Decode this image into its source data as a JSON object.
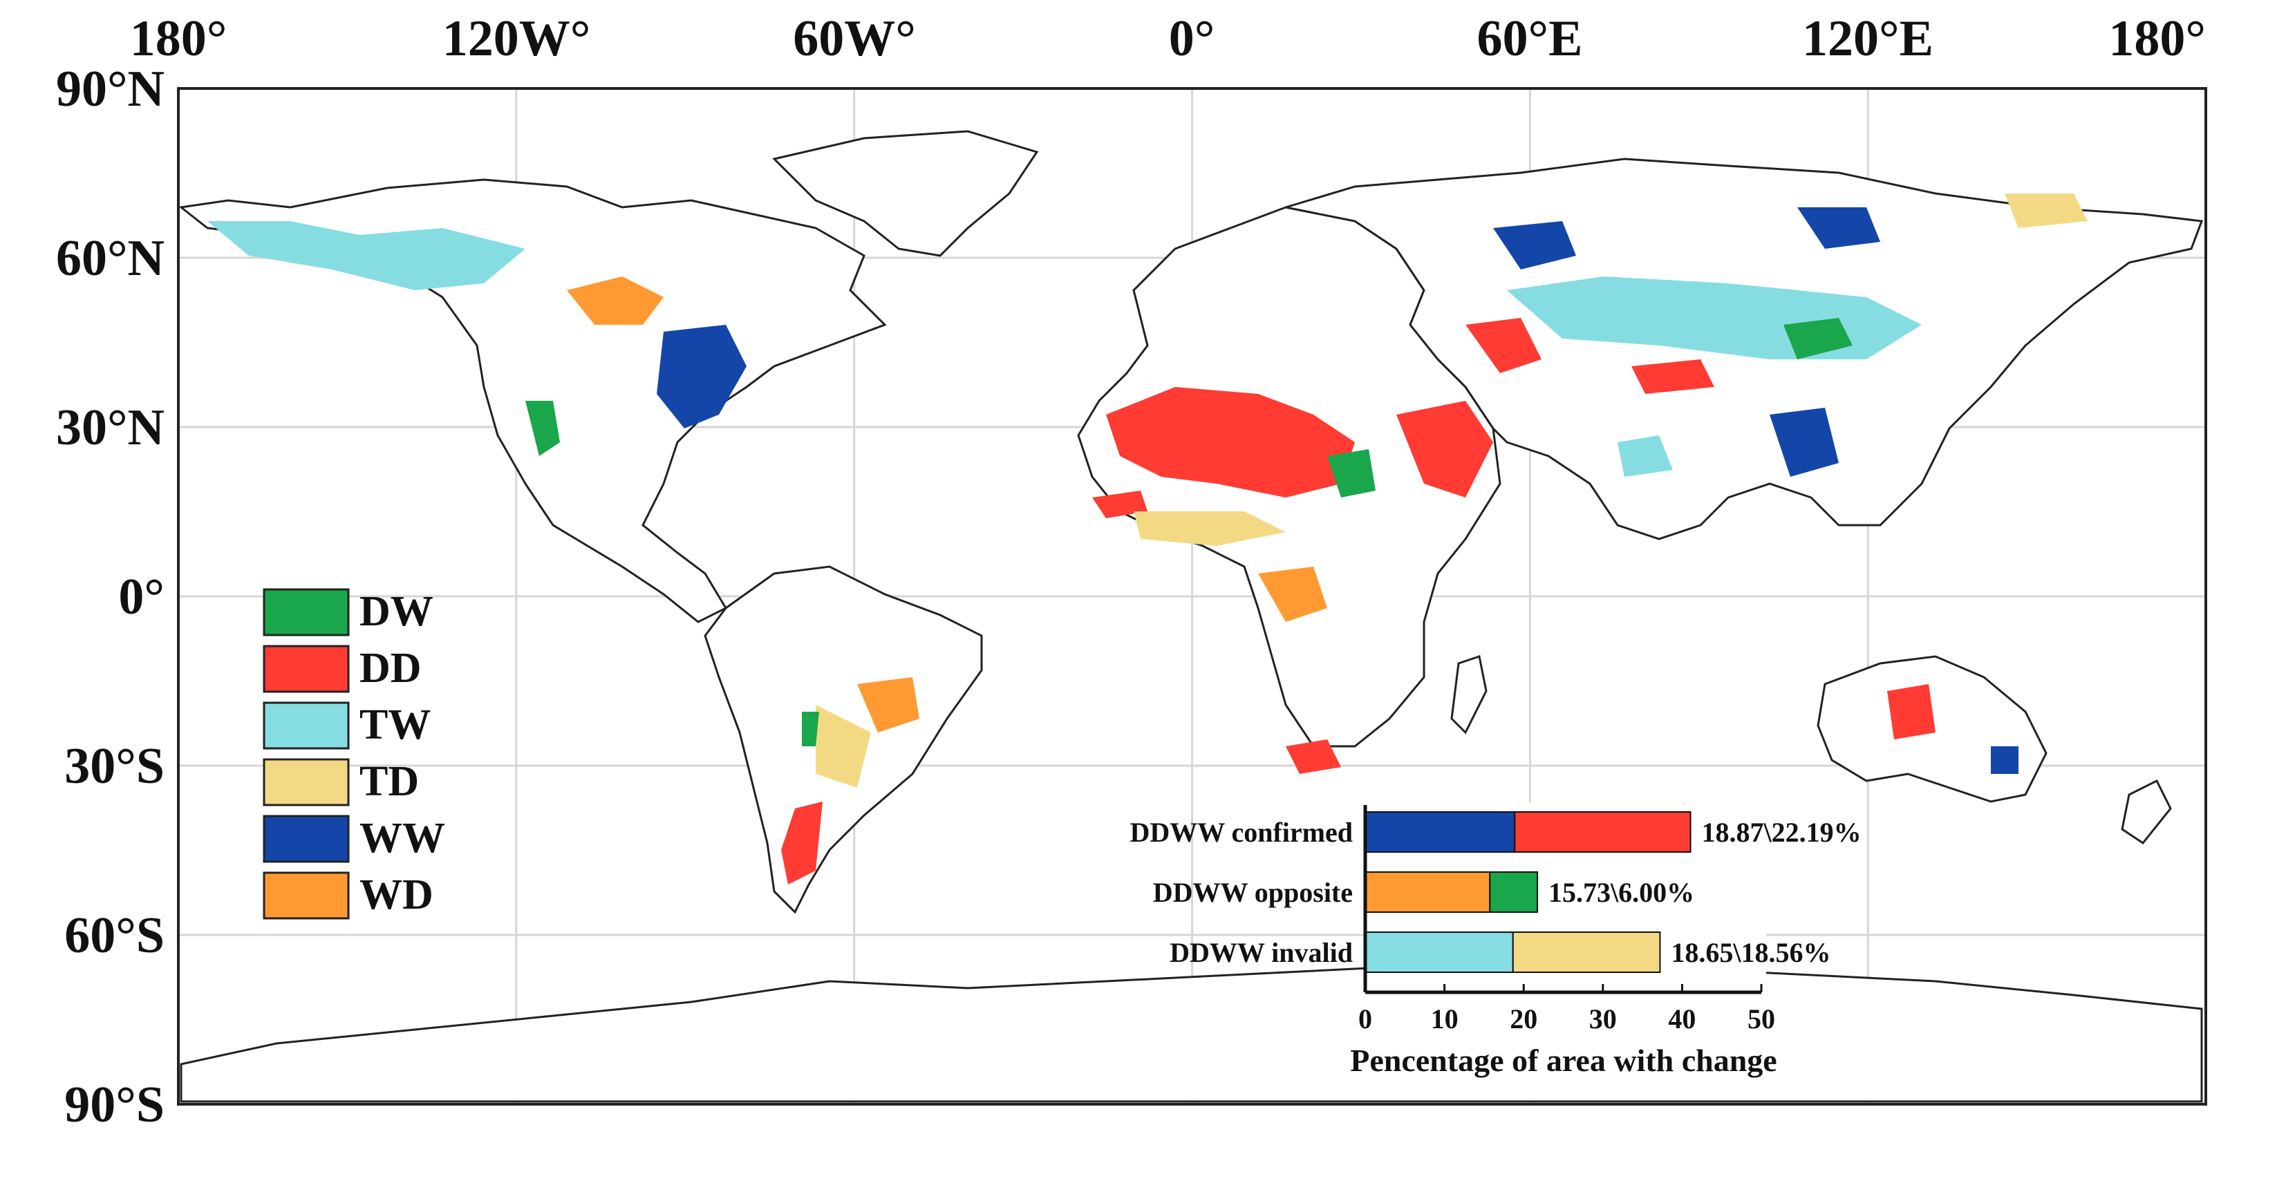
{
  "colors": {
    "DW": "#1aa64a",
    "DD": "#ff3b34",
    "TW": "#86dde1",
    "TD": "#f4d985",
    "WW": "#1346a8",
    "WD": "#ff9a33"
  },
  "map": {
    "lon_labels": [
      "180°",
      "120W°",
      "60W°",
      "0°",
      "60°E",
      "120°E",
      "180°"
    ],
    "lat_labels": [
      "90°N",
      "60°N",
      "30°N",
      "0°",
      "30°S",
      "60°S",
      "90°S"
    ]
  },
  "legend": {
    "items": [
      {
        "key": "DW",
        "label": "DW"
      },
      {
        "key": "DD",
        "label": "DD"
      },
      {
        "key": "TW",
        "label": "TW"
      },
      {
        "key": "TD",
        "label": "TD"
      },
      {
        "key": "WW",
        "label": "WW"
      },
      {
        "key": "WD",
        "label": "WD"
      }
    ]
  },
  "chart_data": {
    "type": "bar",
    "orientation": "horizontal",
    "stacked": true,
    "categories": [
      "DDWW confirmed",
      "DDWW opposite",
      "DDWW invalid"
    ],
    "series": [
      {
        "name": "WW",
        "values": [
          18.87,
          null,
          null
        ]
      },
      {
        "name": "DD",
        "values": [
          22.19,
          null,
          null
        ]
      },
      {
        "name": "WD",
        "values": [
          null,
          15.73,
          null
        ]
      },
      {
        "name": "DW",
        "values": [
          null,
          6.0,
          null
        ]
      },
      {
        "name": "TW",
        "values": [
          null,
          null,
          18.65
        ]
      },
      {
        "name": "TD",
        "values": [
          null,
          null,
          18.56
        ]
      }
    ],
    "bar_labels": [
      "18.87\\22.19%",
      "15.73\\6.00%",
      "18.65\\18.56%"
    ],
    "xlabel": "Pencentage of area with change",
    "xticks": [
      0,
      10,
      20,
      30,
      40,
      50
    ],
    "xlim": [
      0,
      50
    ]
  }
}
